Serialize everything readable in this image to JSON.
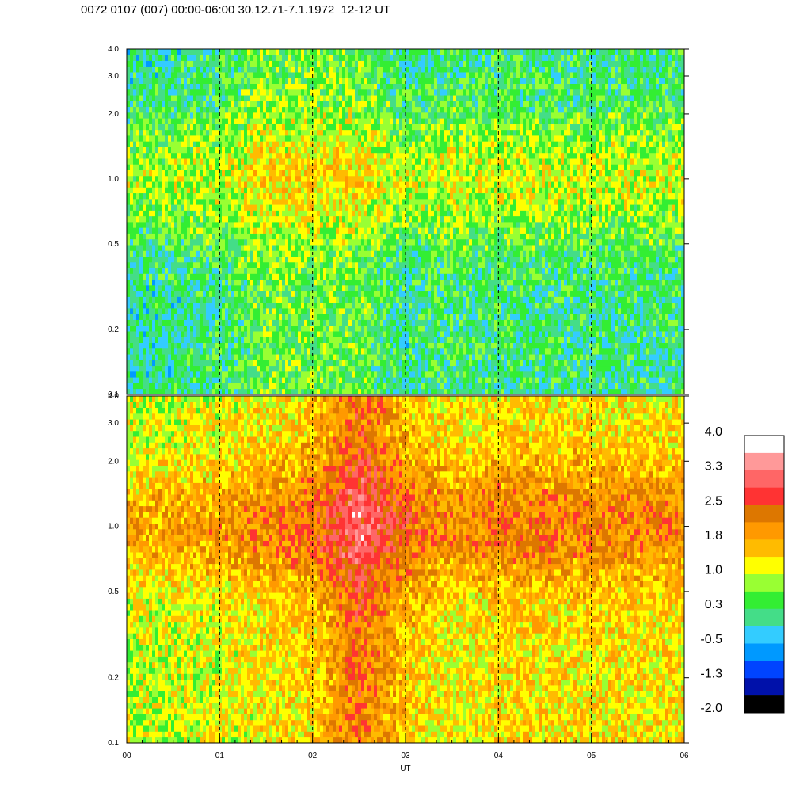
{
  "header": {
    "title": "0072 0107 (007) 00:00-06:00 30.12.71-7.1.1972  12-12 UT"
  },
  "chart_data": {
    "type": "heatmap",
    "xlabel": "UT",
    "x_ticks": [
      "00",
      "01",
      "02",
      "03",
      "04",
      "05",
      "06"
    ],
    "x_range": [
      0,
      6
    ],
    "y_scale": "log",
    "y_range": [
      0.1,
      4.0
    ],
    "y_ticks": [
      "0.1",
      "0.2",
      "0.5",
      "1.0",
      "2.0",
      "3.0",
      "4.0"
    ],
    "grid": "dashed vertical lines at each hour",
    "panels": [
      {
        "name": "upper",
        "level_profile": [
          {
            "time": 0.0,
            "level": 0.3
          },
          {
            "time": 1.0,
            "level": 0.5
          },
          {
            "time": 1.5,
            "level": 0.9
          },
          {
            "time": 2.5,
            "level": 0.9
          },
          {
            "time": 3.0,
            "level": 0.4
          },
          {
            "time": 3.5,
            "level": 0.6
          },
          {
            "time": 4.5,
            "level": 0.5
          },
          {
            "time": 6.0,
            "level": 0.5
          }
        ]
      },
      {
        "name": "lower",
        "level_profile": [
          {
            "time": 0.0,
            "level": 1.3
          },
          {
            "time": 1.0,
            "level": 1.5
          },
          {
            "time": 2.0,
            "level": 1.9
          },
          {
            "time": 2.5,
            "level": 2.8
          },
          {
            "time": 3.0,
            "level": 2.0
          },
          {
            "time": 3.5,
            "level": 1.6
          },
          {
            "time": 4.0,
            "level": 1.8
          },
          {
            "time": 6.0,
            "level": 1.7
          }
        ]
      }
    ],
    "colorbar": {
      "labels": [
        "4.0",
        "3.3",
        "2.5",
        "1.8",
        "1.0",
        "0.3",
        "-0.5",
        "-1.3",
        "-2.0"
      ],
      "colors": [
        "#ffffff",
        "#ff9999",
        "#ff6666",
        "#ff3333",
        "#dd7700",
        "#ff9900",
        "#ffbb00",
        "#ffff00",
        "#99ff33",
        "#33ee33",
        "#44dd88",
        "#33ccff",
        "#0099ff",
        "#0044ff",
        "#0011aa",
        "#000000"
      ]
    }
  }
}
